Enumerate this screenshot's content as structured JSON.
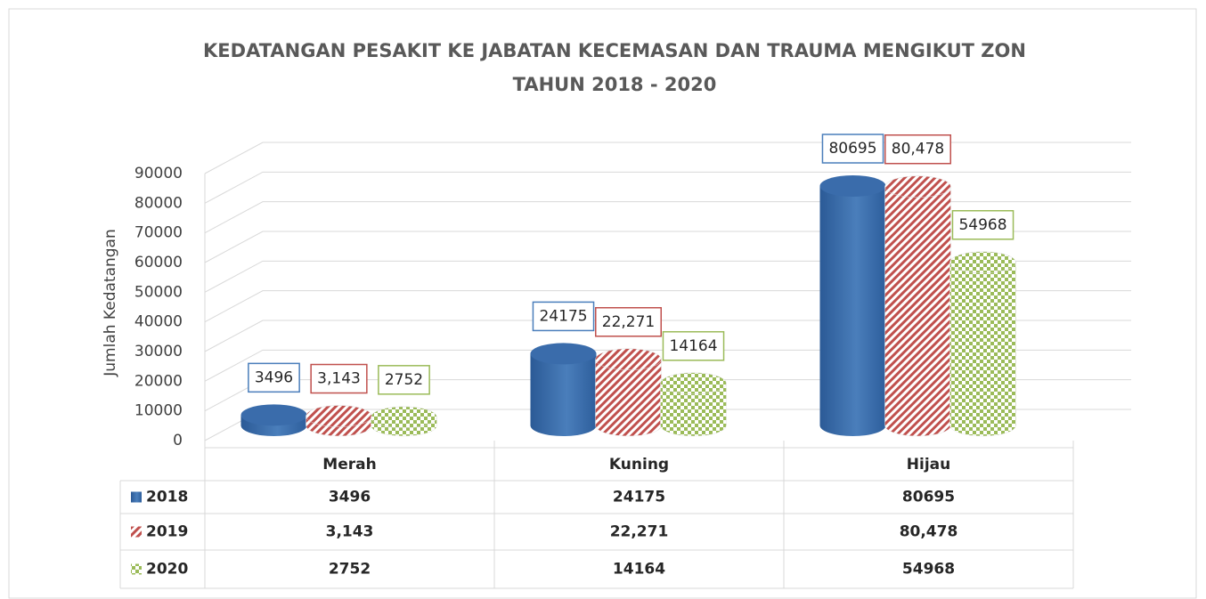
{
  "chart_data": {
    "type": "bar3d",
    "title": [
      "KEDATANGAN PESAKIT KE JABATAN KECEMASAN DAN TRAUMA MENGIKUT ZON",
      "TAHUN 2018 - 2020"
    ],
    "y_label": "Jumlah Kedatangan",
    "categories": [
      "Merah",
      "Kuning",
      "Hijau"
    ],
    "series": [
      {
        "name": "2018",
        "color": "#4a7ebb",
        "values": [
          3496,
          24175,
          80695
        ]
      },
      {
        "name": "2019",
        "color": "#c0504d",
        "values": [
          3143,
          22271,
          80478
        ],
        "value_labels": [
          "3,143",
          "22,271",
          "80,478"
        ]
      },
      {
        "name": "2020",
        "color": "#9bbb59",
        "values": [
          2752,
          14164,
          54968
        ]
      }
    ],
    "ylim": [
      0,
      90000
    ],
    "yticks": [
      0,
      10000,
      20000,
      30000,
      40000,
      50000,
      60000,
      70000,
      80000,
      90000
    ],
    "grid": true
  }
}
